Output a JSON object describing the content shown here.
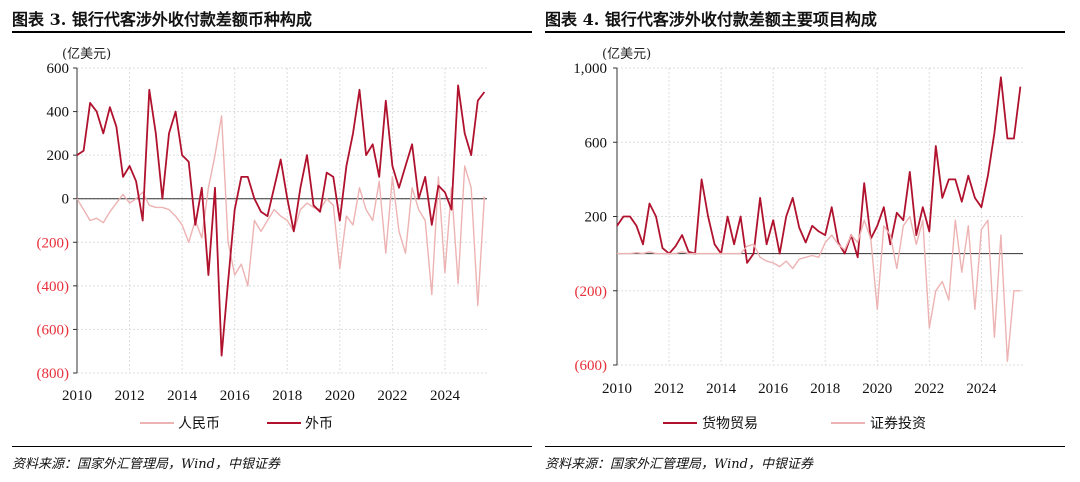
{
  "colors": {
    "dark": "#B0122E",
    "light": "#EDB3B3",
    "negative_label": "#E8303A"
  },
  "left": {
    "title": "图表 3. 银行代客涉外收付款差额币种构成",
    "source": "资料来源：国家外汇管理局，Wind，中银证券"
  },
  "right": {
    "title": "图表 4. 银行代客涉外收付款差额主要项目构成",
    "source": "资料来源：国家外汇管理局，Wind，中银证券"
  },
  "chart_data": [
    {
      "type": "line",
      "title": "银行代客涉外收付款差额币种构成",
      "ylabel": "(亿美元)",
      "x_start": 2010,
      "x_step": 0.25,
      "xlim": [
        2010,
        2025.6
      ],
      "ylim": [
        -800,
        600
      ],
      "yticks": [
        600,
        400,
        200,
        0,
        -200,
        -400,
        -600,
        -800
      ],
      "ytick_labels": [
        "600",
        "400",
        "200",
        "0",
        "(200)",
        "(400)",
        "(600)",
        "(800)"
      ],
      "xticks": [
        2010,
        2012,
        2014,
        2016,
        2018,
        2020,
        2022,
        2024
      ],
      "xtick_labels": [
        "2010",
        "2012",
        "2014",
        "2016",
        "2018",
        "2020",
        "2022",
        "2024"
      ],
      "grid": true,
      "legend": "bottom",
      "series": [
        {
          "name": "人民币",
          "style": "light",
          "values": [
            0,
            -50,
            -100,
            -90,
            -110,
            -60,
            -20,
            20,
            -20,
            0,
            30,
            -30,
            -40,
            -40,
            -50,
            -80,
            -120,
            -200,
            -100,
            -180,
            50,
            200,
            380,
            -200,
            -350,
            -300,
            -400,
            -100,
            -150,
            -100,
            -50,
            -80,
            -100,
            -150,
            -50,
            -20,
            -40,
            -50,
            0,
            -30,
            -320,
            -80,
            -120,
            50,
            -50,
            -100,
            80,
            -250,
            100,
            -150,
            -250,
            50,
            -50,
            -100,
            -440,
            100,
            -340,
            50,
            -390,
            150,
            50,
            -490,
            10
          ]
        },
        {
          "name": "外币",
          "style": "dark",
          "values": [
            200,
            220,
            440,
            400,
            300,
            420,
            330,
            100,
            150,
            80,
            -100,
            500,
            300,
            0,
            300,
            400,
            200,
            170,
            -120,
            50,
            -350,
            50,
            -720,
            -380,
            -50,
            100,
            100,
            0,
            -60,
            -80,
            50,
            180,
            0,
            -150,
            50,
            200,
            -30,
            -60,
            120,
            100,
            -100,
            150,
            300,
            500,
            200,
            250,
            100,
            450,
            150,
            50,
            150,
            250,
            0,
            100,
            -120,
            60,
            30,
            -50,
            520,
            300,
            200,
            450,
            490
          ]
        }
      ]
    },
    {
      "type": "line",
      "title": "银行代客涉外收付款差额主要项目构成",
      "ylabel": "(亿美元)",
      "x_start": 2010,
      "x_step": 0.25,
      "xlim": [
        2010,
        2025.6
      ],
      "ylim": [
        -600,
        1000
      ],
      "yticks": [
        1000,
        600,
        200,
        -200,
        -600
      ],
      "ytick_labels": [
        "1,000",
        "600",
        "200",
        "(200)",
        "(600)"
      ],
      "xticks": [
        2010,
        2012,
        2014,
        2016,
        2018,
        2020,
        2022,
        2024
      ],
      "xtick_labels": [
        "2010",
        "2012",
        "2014",
        "2016",
        "2018",
        "2020",
        "2022",
        "2024"
      ],
      "grid": true,
      "legend": "bottom",
      "series": [
        {
          "name": "货物贸易",
          "style": "dark",
          "values": [
            150,
            200,
            200,
            150,
            50,
            270,
            200,
            30,
            0,
            40,
            100,
            10,
            0,
            400,
            200,
            50,
            0,
            200,
            50,
            200,
            -50,
            0,
            300,
            50,
            180,
            0,
            200,
            300,
            140,
            60,
            150,
            120,
            100,
            250,
            60,
            0,
            100,
            -20,
            380,
            80,
            150,
            250,
            50,
            220,
            180,
            440,
            100,
            250,
            120,
            580,
            300,
            400,
            400,
            280,
            420,
            300,
            250,
            420,
            650,
            950,
            620,
            620,
            900
          ]
        },
        {
          "name": "证券投资",
          "style": "light",
          "values": [
            0,
            0,
            0,
            5,
            0,
            10,
            0,
            0,
            0,
            0,
            10,
            0,
            0,
            0,
            0,
            0,
            0,
            0,
            0,
            0,
            40,
            50,
            -20,
            -40,
            -50,
            -70,
            -40,
            -80,
            -30,
            -20,
            -10,
            -20,
            60,
            100,
            50,
            20,
            100,
            60,
            180,
            80,
            -300,
            150,
            100,
            -80,
            150,
            200,
            50,
            180,
            -400,
            -200,
            -150,
            -250,
            180,
            -100,
            150,
            -300,
            130,
            180,
            -450,
            100,
            -580,
            -200,
            -200
          ]
        }
      ]
    }
  ]
}
